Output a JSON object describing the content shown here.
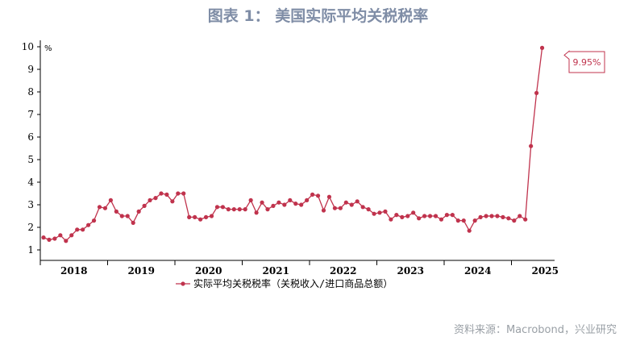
{
  "title": "图表 1： 美国实际平均关税税率",
  "source": "资料来源：Macrobond，兴业研究",
  "colors": {
    "series": "#c0334d",
    "title": "#7f8da6",
    "source": "#9aa0a6"
  },
  "chart_data": {
    "type": "line",
    "unit_label": "%",
    "ylim": [
      1,
      10
    ],
    "yticks": [
      "1",
      "2",
      "3",
      "4",
      "5",
      "6",
      "7",
      "8",
      "9",
      "10"
    ],
    "xlabels": [
      "2018",
      "2019",
      "2020",
      "2021",
      "2022",
      "2023",
      "2024",
      "2025"
    ],
    "legend": "实际平均关税税率（关税收入/进口商品总额）",
    "annotation": "9.95%",
    "series": [
      {
        "name": "实际平均关税税率（关税收入/进口商品总额）",
        "values": [
          1.55,
          1.45,
          1.5,
          1.65,
          1.4,
          1.65,
          1.9,
          1.9,
          2.1,
          2.3,
          2.9,
          2.85,
          3.2,
          2.7,
          2.5,
          2.5,
          2.2,
          2.7,
          2.95,
          3.2,
          3.3,
          3.5,
          3.45,
          3.15,
          3.5,
          3.5,
          2.45,
          2.45,
          2.35,
          2.45,
          2.5,
          2.9,
          2.9,
          2.8,
          2.8,
          2.8,
          2.8,
          3.2,
          2.65,
          3.1,
          2.8,
          2.95,
          3.1,
          3.0,
          3.2,
          3.05,
          3.0,
          3.2,
          3.45,
          3.4,
          2.75,
          3.35,
          2.85,
          2.85,
          3.1,
          3.0,
          3.15,
          2.9,
          2.8,
          2.6,
          2.65,
          2.7,
          2.35,
          2.55,
          2.45,
          2.5,
          2.65,
          2.4,
          2.5,
          2.5,
          2.5,
          2.35,
          2.55,
          2.55,
          2.3,
          2.3,
          1.85,
          2.3,
          2.45,
          2.5,
          2.5,
          2.5,
          2.45,
          2.4,
          2.3,
          2.5,
          2.35,
          5.6,
          7.95,
          9.95
        ]
      }
    ]
  }
}
